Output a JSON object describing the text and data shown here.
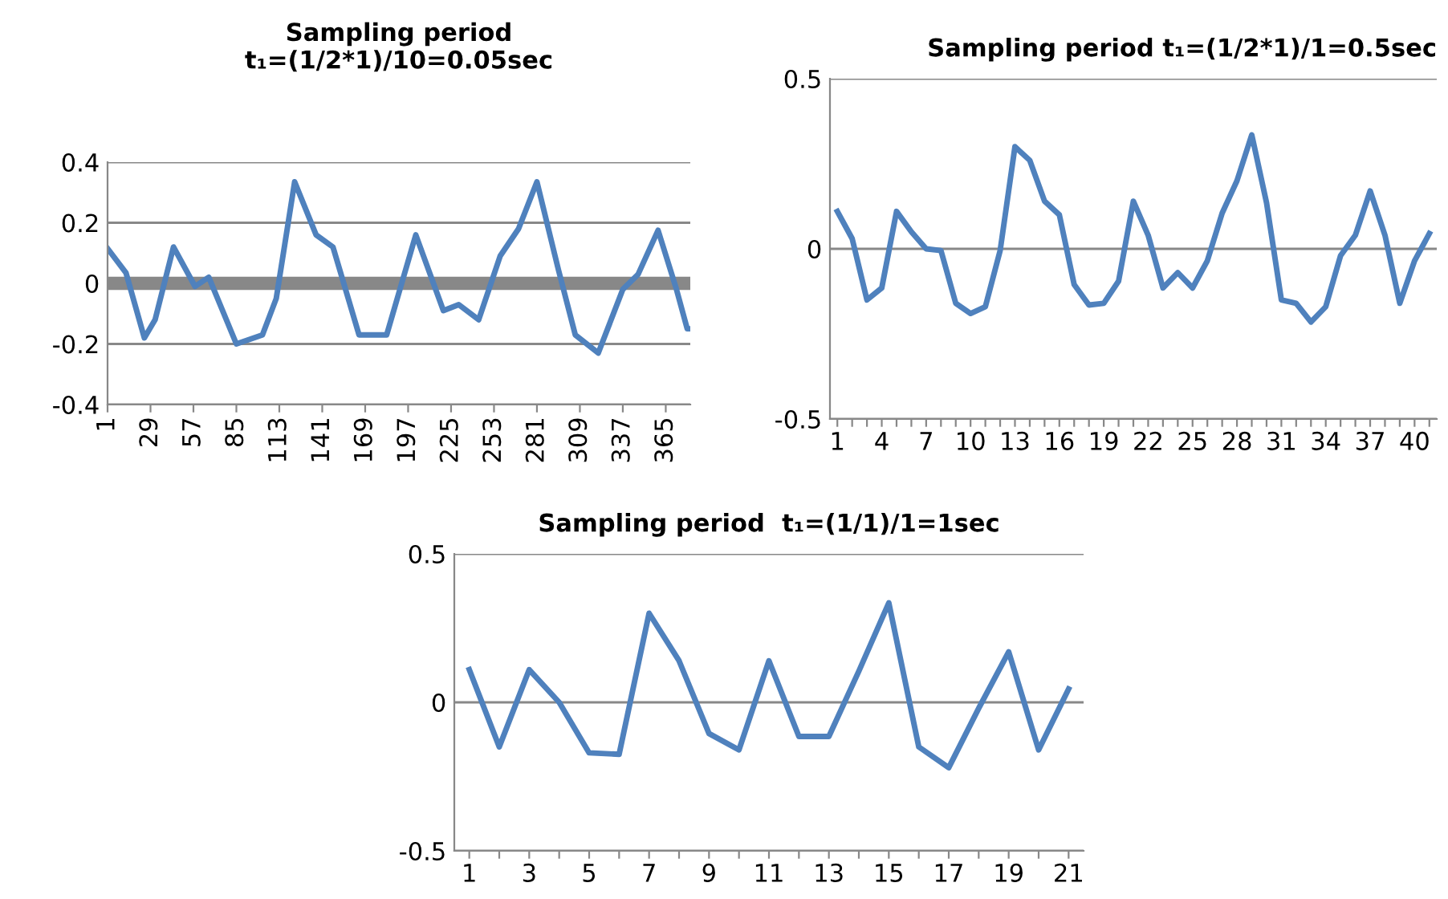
{
  "chart_data": [
    {
      "type": "line",
      "title": "Sampling period\nt₁=(1/2*1)/10=0.05sec",
      "x": [
        1,
        13,
        25,
        32,
        44,
        58,
        67,
        85,
        102,
        111,
        123,
        137,
        148,
        165,
        183,
        202,
        220,
        230,
        243,
        257,
        269,
        281,
        295,
        306,
        321,
        337,
        347,
        360,
        372,
        379,
        381
      ],
      "series": [
        {
          "color": "#4f81bd",
          "values": [
            0.115,
            0.035,
            -0.18,
            -0.12,
            0.12,
            -0.01,
            0.02,
            -0.2,
            -0.17,
            -0.05,
            0.335,
            0.16,
            0.12,
            -0.17,
            -0.17,
            0.16,
            -0.09,
            -0.07,
            -0.12,
            0.09,
            0.18,
            0.335,
            0.045,
            -0.17,
            -0.23,
            -0.02,
            0.03,
            0.175,
            -0.02,
            -0.15,
            -0.15
          ]
        }
      ],
      "xlim": [
        1,
        381
      ],
      "xticks": [
        1,
        29,
        57,
        85,
        113,
        141,
        169,
        197,
        225,
        253,
        281,
        309,
        337,
        365
      ],
      "ylim": [
        -0.4,
        0.4
      ],
      "yticks": [
        -0.4,
        -0.2,
        0,
        0.2,
        0.4
      ],
      "grid": "y",
      "marker": "none",
      "line_style": "solid"
    },
    {
      "type": "line",
      "title": "Sampling period t₁=(1/2*1)/1=0.5sec",
      "categories": [
        "1",
        null,
        null,
        "4",
        null,
        null,
        "7",
        null,
        null,
        "10",
        null,
        null,
        "13",
        null,
        null,
        "16",
        null,
        null,
        "19",
        null,
        null,
        "22",
        null,
        null,
        "25",
        null,
        null,
        "28",
        null,
        null,
        "31",
        null,
        null,
        "34",
        null,
        null,
        "37",
        null,
        null,
        "40",
        null
      ],
      "series": [
        {
          "color": "#4f81bd",
          "values": [
            0.11,
            0.03,
            -0.15,
            -0.115,
            0.11,
            0.05,
            0.0,
            -0.005,
            -0.16,
            -0.19,
            -0.17,
            -0.005,
            0.3,
            0.26,
            0.14,
            0.1,
            -0.105,
            -0.165,
            -0.16,
            -0.095,
            0.14,
            0.04,
            -0.115,
            -0.07,
            -0.115,
            -0.035,
            0.105,
            0.2,
            0.335,
            0.135,
            -0.15,
            -0.16,
            -0.215,
            -0.17,
            -0.02,
            0.04,
            0.17,
            0.04,
            -0.16,
            -0.035,
            0.045
          ]
        }
      ],
      "ylim": [
        -0.5,
        0.5
      ],
      "yticks": [
        -0.5,
        0,
        0.5
      ],
      "grid": "y",
      "marker": "none",
      "line_style": "solid"
    },
    {
      "type": "line",
      "title": "Sampling period  t₁=(1/1)/1=1sec",
      "categories": [
        "1",
        null,
        "3",
        null,
        "5",
        null,
        "7",
        null,
        "9",
        null,
        "11",
        null,
        "13",
        null,
        "15",
        null,
        "17",
        null,
        "19",
        null,
        "21"
      ],
      "series": [
        {
          "color": "#4f81bd",
          "values": [
            0.11,
            -0.15,
            0.11,
            0.0,
            -0.17,
            -0.175,
            0.3,
            0.14,
            -0.105,
            -0.16,
            0.14,
            -0.115,
            -0.115,
            0.105,
            0.335,
            -0.15,
            -0.22,
            -0.02,
            0.17,
            -0.16,
            0.045
          ]
        }
      ],
      "ylim": [
        -0.5,
        0.5
      ],
      "yticks": [
        -0.5,
        0,
        0.5
      ],
      "grid": "y",
      "marker": "none",
      "line_style": "solid"
    }
  ]
}
